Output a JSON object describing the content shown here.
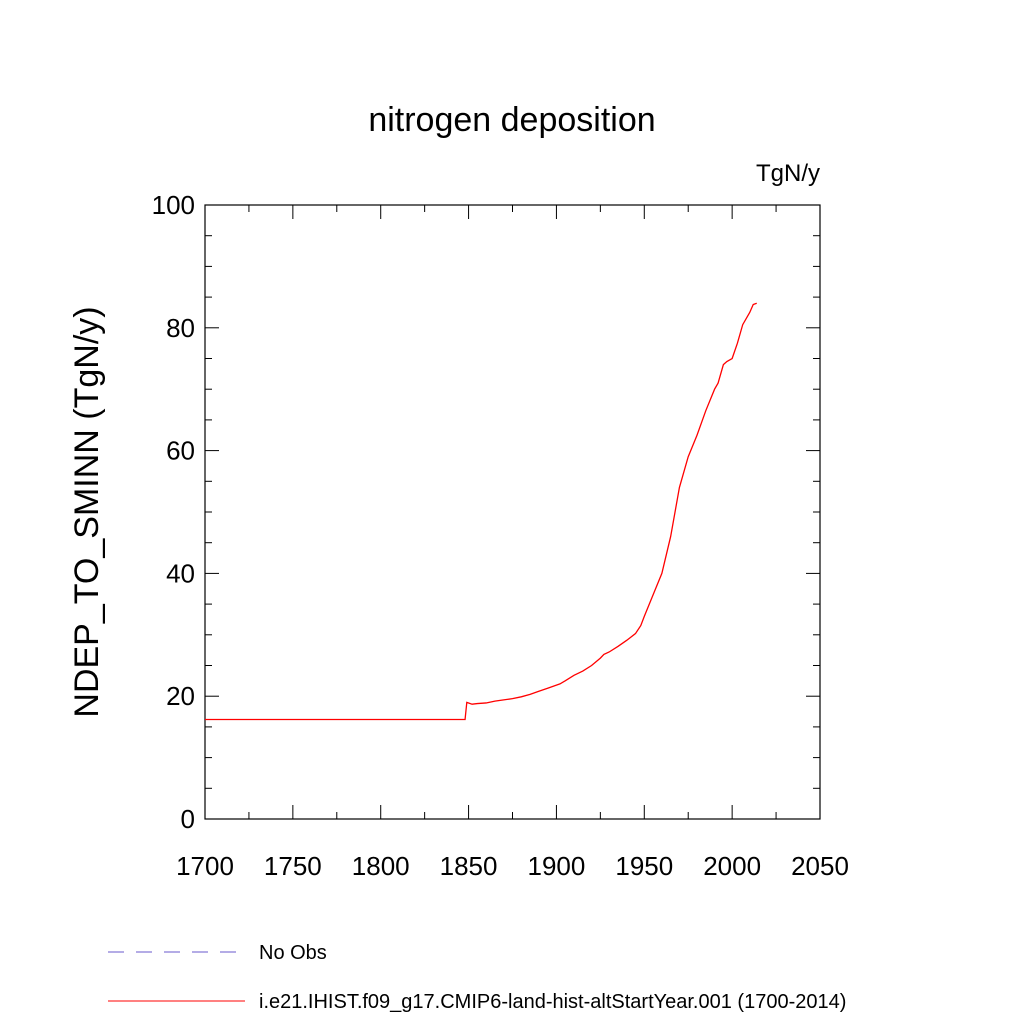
{
  "chart_data": {
    "type": "line",
    "title": "nitrogen deposition",
    "units_label": "TgN/y",
    "ylabel": "NDEP_TO_SMINN  (TgN/y)",
    "xlabel": "",
    "xlim": [
      1700,
      2050
    ],
    "ylim": [
      0,
      100
    ],
    "x_ticks": [
      "1700",
      "1750",
      "1800",
      "1850",
      "1900",
      "1950",
      "2000",
      "2050"
    ],
    "y_ticks": [
      "0",
      "20",
      "40",
      "60",
      "80",
      "100"
    ],
    "grid": false,
    "legend_position": "bottom-left, below plot",
    "series": [
      {
        "name": "No Obs",
        "color": "#6a5acd",
        "dash": "dashed",
        "points": []
      },
      {
        "name": "i.e21.IHIST.f09_g17.CMIP6-land-hist-altStartYear.001 (1700-2014)",
        "color": "#ff0000",
        "dash": "solid",
        "points": [
          [
            1700,
            16.2
          ],
          [
            1750,
            16.2
          ],
          [
            1800,
            16.2
          ],
          [
            1848,
            16.2
          ],
          [
            1849,
            19.0
          ],
          [
            1850,
            18.9
          ],
          [
            1852,
            18.7
          ],
          [
            1855,
            18.8
          ],
          [
            1860,
            18.9
          ],
          [
            1865,
            19.2
          ],
          [
            1870,
            19.4
          ],
          [
            1875,
            19.6
          ],
          [
            1880,
            19.9
          ],
          [
            1885,
            20.3
          ],
          [
            1890,
            20.8
          ],
          [
            1895,
            21.3
          ],
          [
            1900,
            21.8
          ],
          [
            1902,
            22.0
          ],
          [
            1905,
            22.5
          ],
          [
            1910,
            23.4
          ],
          [
            1915,
            24.1
          ],
          [
            1920,
            25.0
          ],
          [
            1925,
            26.2
          ],
          [
            1927,
            26.8
          ],
          [
            1930,
            27.2
          ],
          [
            1935,
            28.1
          ],
          [
            1940,
            29.1
          ],
          [
            1945,
            30.2
          ],
          [
            1948,
            31.5
          ],
          [
            1950,
            33.0
          ],
          [
            1955,
            36.5
          ],
          [
            1960,
            40.0
          ],
          [
            1965,
            46.0
          ],
          [
            1970,
            54.0
          ],
          [
            1975,
            59.0
          ],
          [
            1980,
            62.5
          ],
          [
            1985,
            66.5
          ],
          [
            1990,
            70.0
          ],
          [
            1992,
            71.0
          ],
          [
            1995,
            74.0
          ],
          [
            1997,
            74.5
          ],
          [
            2000,
            75.0
          ],
          [
            2003,
            77.5
          ],
          [
            2006,
            80.5
          ],
          [
            2010,
            82.5
          ],
          [
            2012,
            83.8
          ],
          [
            2014,
            84.0
          ]
        ]
      }
    ]
  }
}
